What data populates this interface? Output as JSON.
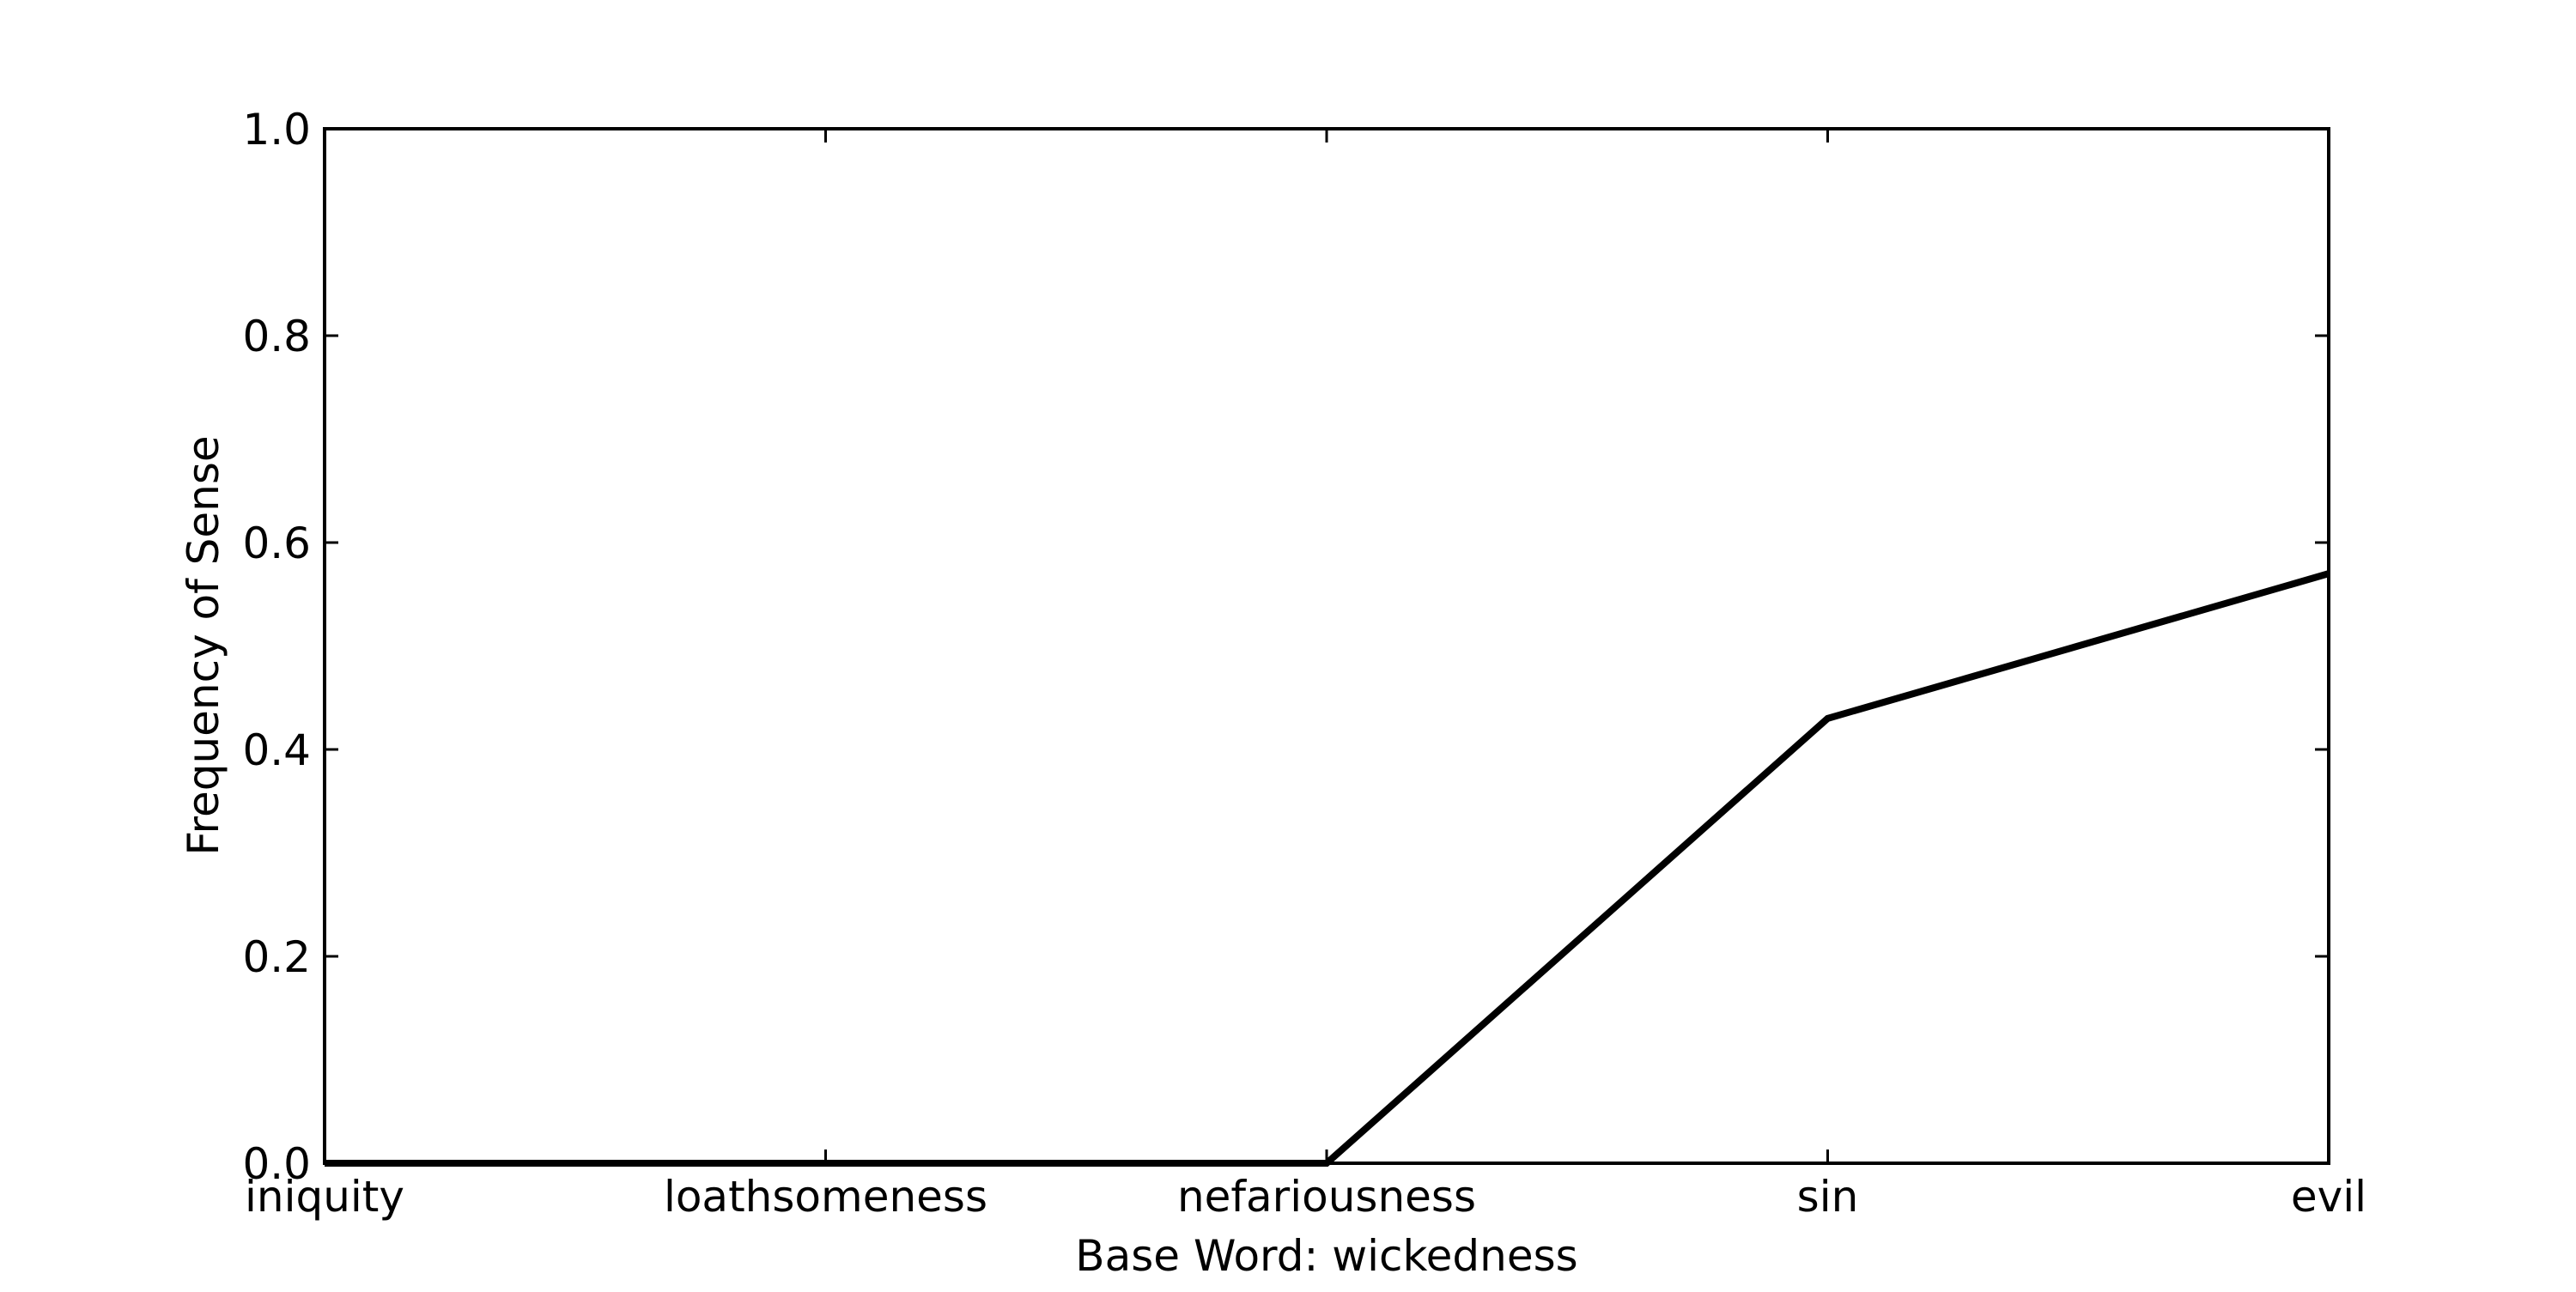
{
  "chart_data": {
    "type": "line",
    "title": "",
    "xlabel": "Base Word: wickedness",
    "ylabel": "Frequency of Sense",
    "categories": [
      "iniquity",
      "loathsomeness",
      "nefariousness",
      "sin",
      "evil"
    ],
    "series": [
      {
        "values": [
          0.0,
          0.0,
          0.0,
          0.43,
          0.57
        ]
      }
    ],
    "ylim": [
      0.0,
      1.0
    ],
    "yticks": [
      "0.0",
      "0.2",
      "0.4",
      "0.6",
      "0.8",
      "1.0"
    ],
    "grid": false,
    "line_color": "#000000"
  }
}
